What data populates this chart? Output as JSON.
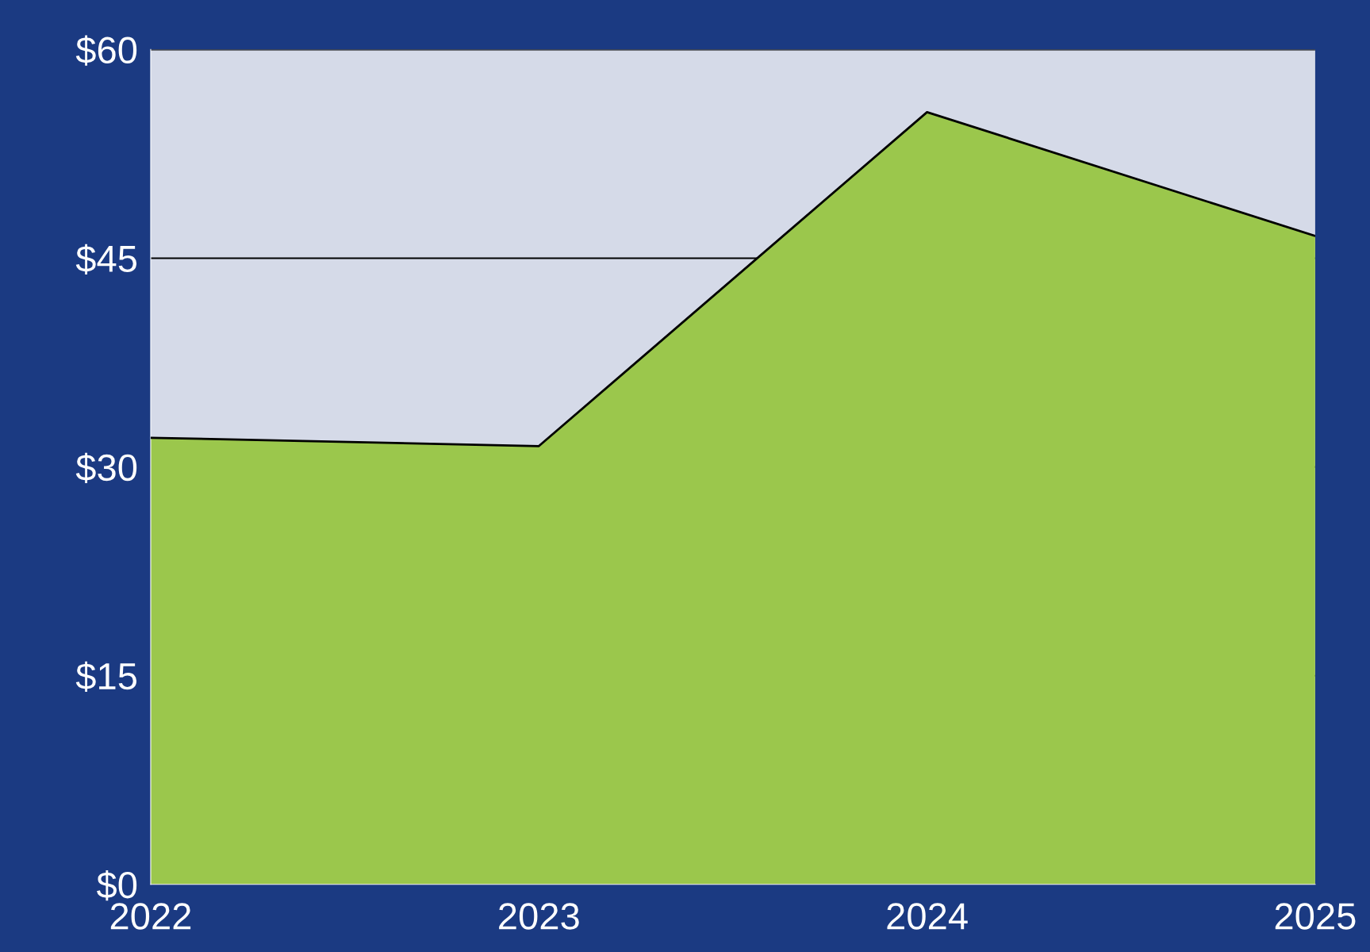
{
  "chart_data": {
    "type": "area",
    "categories": [
      "2022",
      "2023",
      "2024",
      "2025"
    ],
    "values": [
      32.1,
      31.5,
      55.5,
      46.6
    ],
    "color": "#9bc74c",
    "ylim": [
      0,
      60
    ],
    "yticks": [
      {
        "value": 0,
        "label": "$0"
      },
      {
        "value": 15,
        "label": "$15"
      },
      {
        "value": 30,
        "label": "$30"
      },
      {
        "value": 45,
        "label": "$45"
      },
      {
        "value": 60,
        "label": "$60"
      }
    ],
    "grid": "y"
  }
}
